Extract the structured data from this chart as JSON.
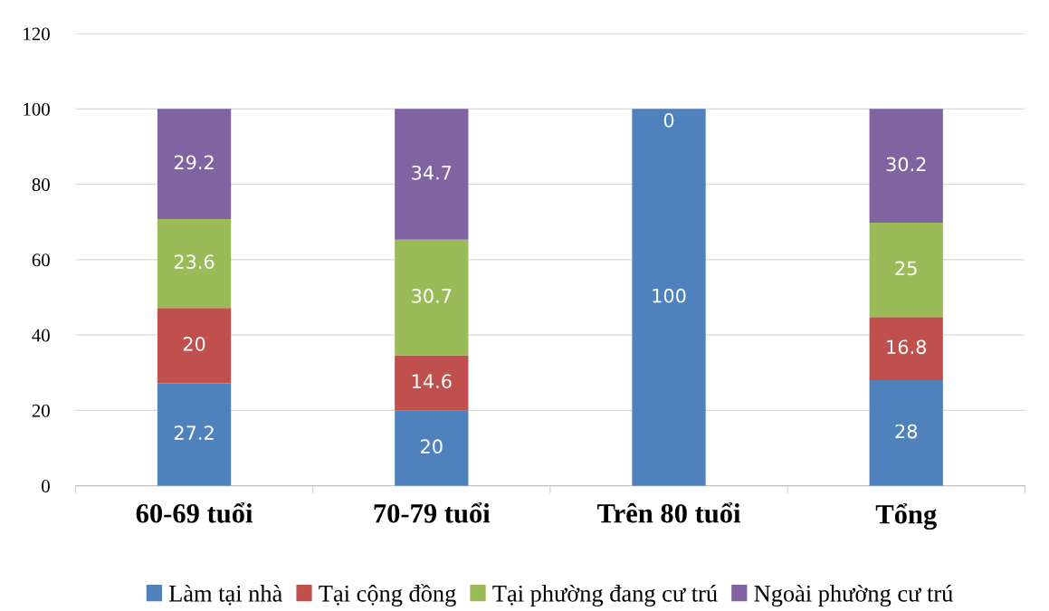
{
  "chart_data": {
    "type": "bar",
    "stacked": true,
    "categories": [
      "60-69 tuổi",
      "70-79 tuổi",
      "Trên 80 tuổi",
      "Tổng"
    ],
    "series": [
      {
        "name": "Làm tại nhà",
        "color": "#4f81bd",
        "values": [
          27.2,
          20,
          100,
          28
        ],
        "value_labels": [
          "27.2",
          "20",
          "100",
          "28"
        ]
      },
      {
        "name": "Tại cộng đồng",
        "color": "#c0504d",
        "values": [
          20,
          14.6,
          0,
          16.8
        ],
        "value_labels": [
          "20",
          "14.6",
          null,
          "16.8"
        ]
      },
      {
        "name": "Tại phường đang cư trú",
        "color": "#9bbb59",
        "values": [
          23.6,
          30.7,
          0,
          25
        ],
        "value_labels": [
          "23.6",
          "30.7",
          null,
          "25"
        ]
      },
      {
        "name": "Ngoài phường cư trú",
        "color": "#8064a2",
        "values": [
          29.2,
          34.7,
          0,
          30.2
        ],
        "value_labels": [
          "29.2",
          "34.7",
          "0",
          "30.2"
        ]
      }
    ],
    "ylim": [
      0,
      120
    ],
    "yticks": [
      0,
      20,
      40,
      60,
      80,
      100,
      120
    ],
    "grid": "y",
    "legend": "bottom"
  }
}
